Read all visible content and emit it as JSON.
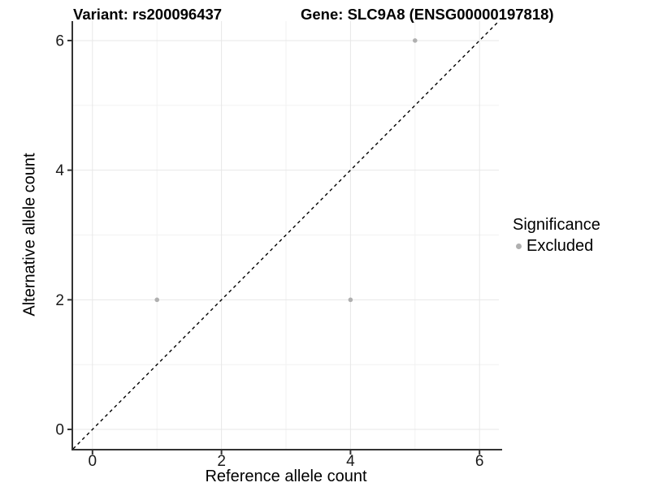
{
  "figure": {
    "title_left": "Variant: rs200096437",
    "title_right": "Gene: SLC9A8 (ENSG00000197818)"
  },
  "chart_data": {
    "type": "scatter",
    "xlabel": "Reference allele count",
    "ylabel": "Alternative allele count",
    "xlim": [
      -0.3,
      6.3
    ],
    "ylim": [
      -0.3,
      6.3
    ],
    "major_ticks": [
      0,
      2,
      4,
      6
    ],
    "minor_ticks": [
      1,
      3,
      5
    ],
    "grid": "major+minor",
    "points": [
      {
        "x": 1,
        "y": 2,
        "significance": "Excluded"
      },
      {
        "x": 4,
        "y": 2,
        "significance": "Excluded"
      },
      {
        "x": 5,
        "y": 6,
        "significance": "Excluded"
      }
    ],
    "point_color": "#b0b0b0",
    "identity_line": {
      "slope": 1,
      "intercept": 0,
      "style": "dashed",
      "color": "#000000"
    },
    "legend": {
      "title": "Significance",
      "position": "right",
      "items": [
        {
          "label": "Excluded",
          "color": "#b0b0b0"
        }
      ]
    }
  },
  "style": {
    "grid_major_color": "#e7e7e7",
    "grid_minor_color": "#f2f2f2",
    "axis_color": "#333333",
    "tick_label_color": "#1a1a1a",
    "text_color": "#000000",
    "background_color": "#ffffff"
  }
}
